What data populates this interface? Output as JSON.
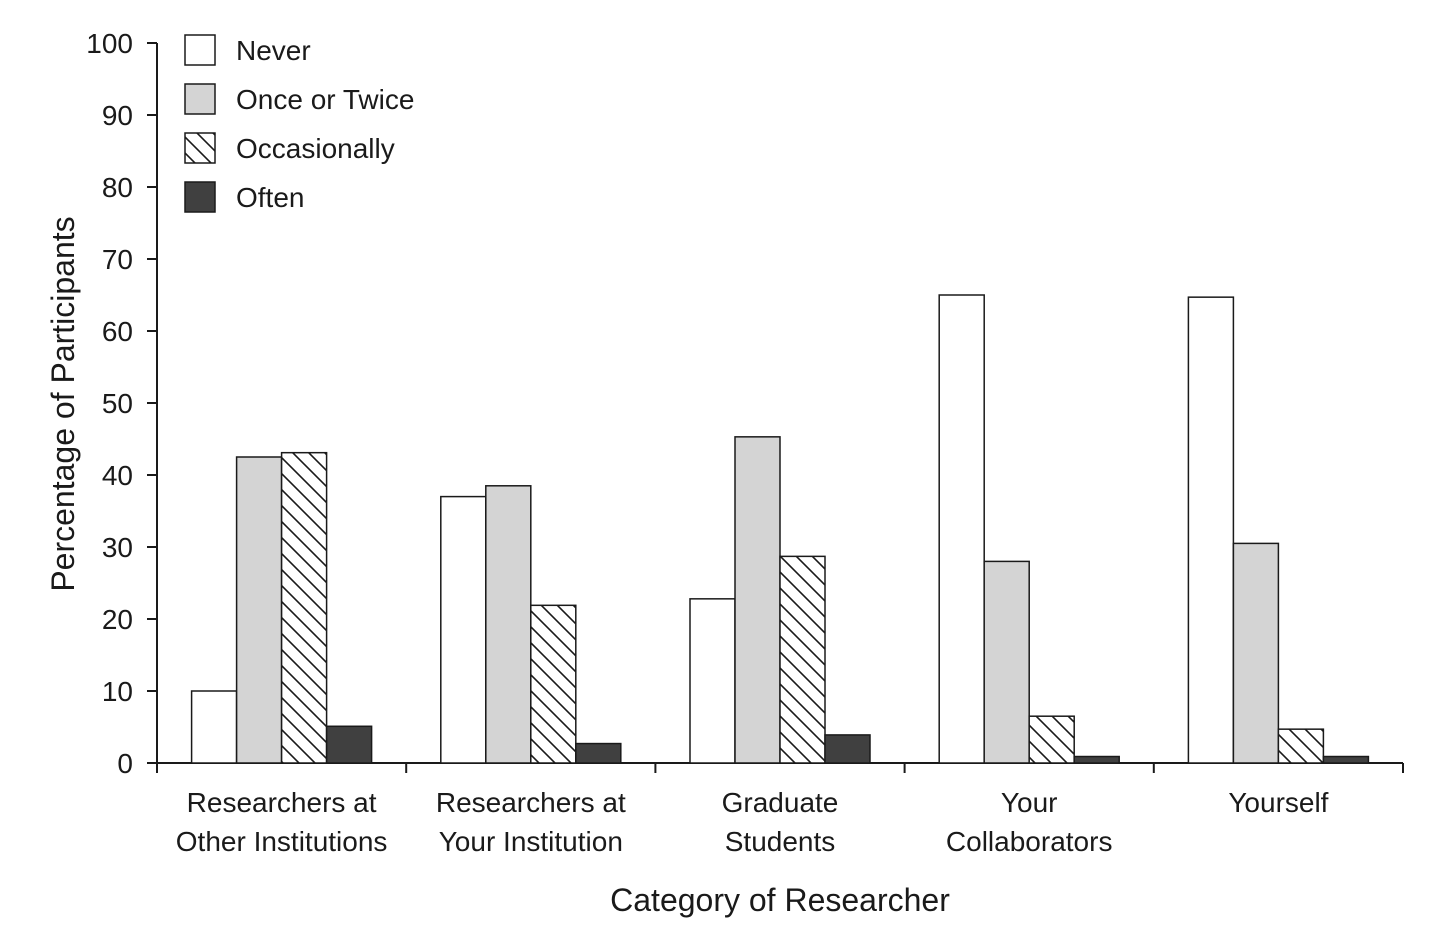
{
  "chart_data": {
    "type": "bar",
    "title": "",
    "xlabel": "Category of Researcher",
    "ylabel": "Percentage of Participants",
    "ylim": [
      0,
      100
    ],
    "yticks": [
      0,
      10,
      20,
      30,
      40,
      50,
      60,
      70,
      80,
      90,
      100
    ],
    "grid": false,
    "legend_position": "top-left",
    "categories": [
      [
        "Researchers at",
        "Other Institutions"
      ],
      [
        "Researchers at",
        "Your Institution"
      ],
      [
        "Graduate",
        "Students"
      ],
      [
        "Your",
        "Collaborators"
      ],
      [
        "Yourself"
      ]
    ],
    "series": [
      {
        "name": "Never",
        "style": "white",
        "values": [
          10,
          37,
          22.8,
          65,
          64.7
        ]
      },
      {
        "name": "Once or Twice",
        "style": "lightgray",
        "values": [
          42.5,
          38.5,
          45.3,
          28,
          30.5
        ]
      },
      {
        "name": "Occasionally",
        "style": "hatched",
        "values": [
          43.1,
          21.9,
          28.7,
          6.5,
          4.7
        ]
      },
      {
        "name": "Often",
        "style": "dark",
        "values": [
          5.1,
          2.7,
          3.9,
          0.9,
          0.9
        ]
      }
    ],
    "colors": {
      "white": "#ffffff",
      "lightgray": "#d4d4d4",
      "dark": "#404040",
      "stroke": "#1a1a1a"
    }
  }
}
